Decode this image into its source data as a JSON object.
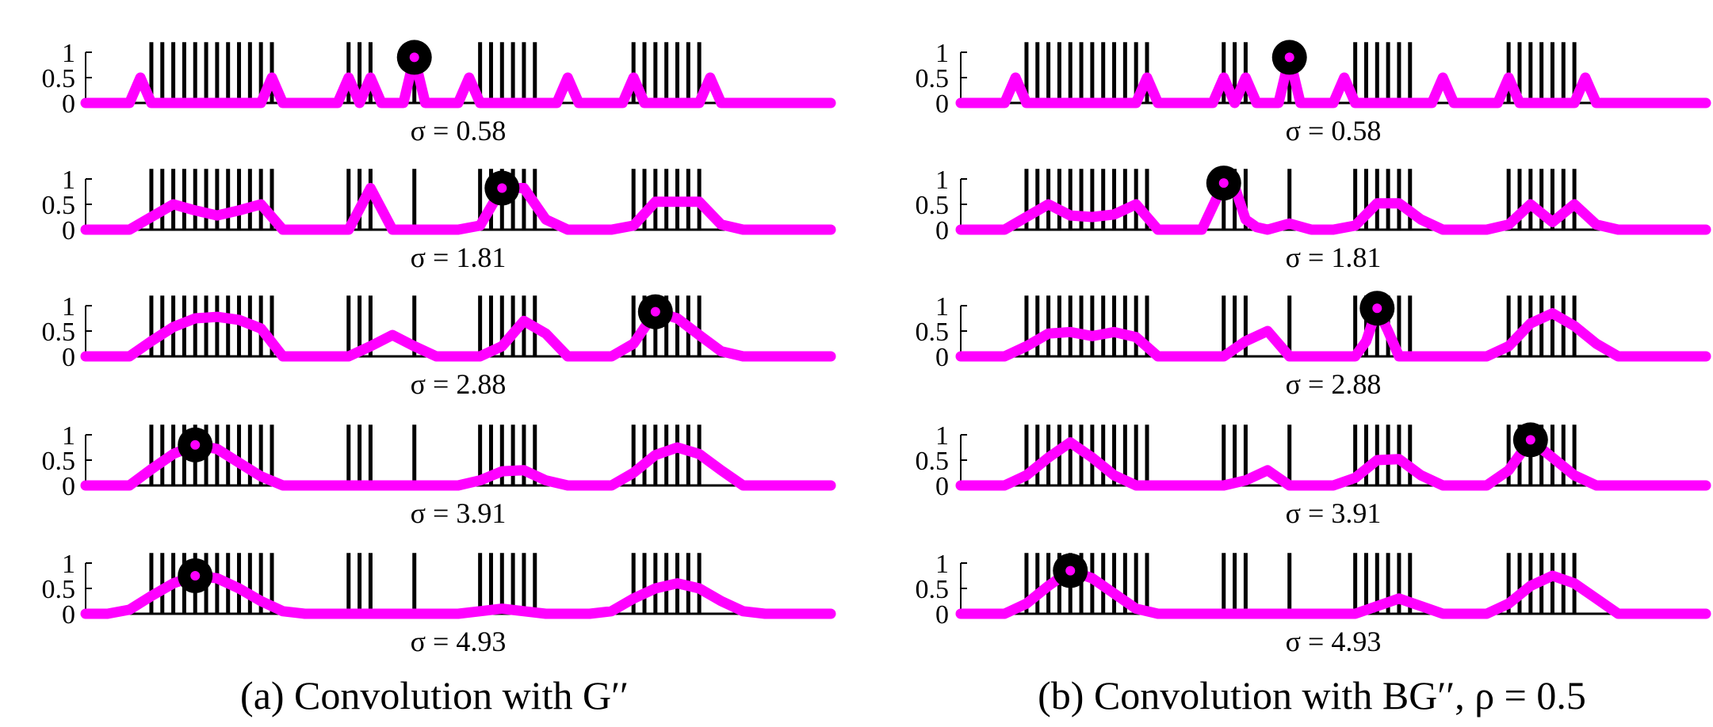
{
  "chart_data": [
    {
      "type": "line",
      "caption": "(a) Convolution with G′′",
      "y_ticks": [
        "0",
        "0.5",
        "1"
      ],
      "ylim": [
        0,
        1
      ],
      "xlim": [
        0,
        68
      ],
      "stem_x": [
        6,
        7,
        8,
        9,
        10,
        11,
        12,
        13,
        14,
        15,
        16,
        17,
        24,
        25,
        26,
        30,
        36,
        37,
        38,
        39,
        40,
        41,
        50,
        51,
        52,
        53,
        54,
        55,
        56
      ],
      "panels": [
        {
          "sigma_label": "σ = 0.58",
          "marker": [
            30,
            0.9
          ],
          "x": [
            0,
            4,
            5,
            6,
            7,
            16,
            17,
            18,
            22,
            23,
            24,
            25,
            26,
            27,
            28,
            29,
            30,
            31,
            32,
            34,
            35,
            36,
            37,
            38,
            42,
            43,
            44,
            45,
            46,
            48,
            49,
            50,
            51,
            52,
            56,
            57,
            58,
            59,
            68
          ],
          "values": [
            0,
            0,
            0.5,
            0,
            0,
            0,
            0.5,
            0,
            0,
            0,
            0.5,
            0,
            0.5,
            0,
            0,
            0,
            0.9,
            0,
            0,
            0,
            0.5,
            0,
            0,
            0,
            0,
            0,
            0.5,
            0,
            0,
            0,
            0,
            0.5,
            0,
            0,
            0,
            0.5,
            0,
            0,
            0
          ]
        },
        {
          "sigma_label": "σ = 1.81",
          "marker": [
            38,
            0.82
          ],
          "x": [
            0,
            4,
            6,
            8,
            10,
            12,
            14,
            16,
            18,
            22,
            24,
            26,
            28,
            32,
            34,
            36,
            38,
            40,
            42,
            44,
            46,
            48,
            50,
            52,
            54,
            55,
            56,
            58,
            60,
            68
          ],
          "values": [
            0,
            0,
            0.25,
            0.5,
            0.38,
            0.28,
            0.38,
            0.5,
            0,
            0,
            0,
            0.82,
            0,
            0,
            0,
            0.08,
            0.82,
            0.82,
            0.2,
            0,
            0,
            0,
            0.08,
            0.55,
            0.55,
            0.55,
            0.55,
            0.1,
            0,
            0
          ]
        },
        {
          "sigma_label": "σ = 2.88",
          "marker": [
            52,
            0.88
          ],
          "x": [
            0,
            4,
            6,
            8,
            10,
            12,
            14,
            16,
            18,
            22,
            24,
            26,
            28,
            30,
            32,
            34,
            36,
            38,
            40,
            42,
            44,
            46,
            48,
            50,
            52,
            54,
            56,
            58,
            60,
            68
          ],
          "values": [
            0,
            0,
            0.3,
            0.58,
            0.75,
            0.78,
            0.72,
            0.55,
            0,
            0,
            0,
            0.2,
            0.42,
            0.2,
            0,
            0,
            0,
            0.2,
            0.7,
            0.45,
            0,
            0,
            0,
            0.25,
            0.88,
            0.75,
            0.42,
            0.1,
            0,
            0
          ]
        },
        {
          "sigma_label": "σ = 3.91",
          "marker": [
            10,
            0.8
          ],
          "x": [
            0,
            4,
            6,
            8,
            10,
            12,
            14,
            16,
            18,
            24,
            28,
            32,
            34,
            36,
            38,
            40,
            42,
            44,
            46,
            48,
            50,
            52,
            54,
            56,
            58,
            60,
            68
          ],
          "values": [
            0,
            0,
            0.32,
            0.62,
            0.8,
            0.72,
            0.45,
            0.18,
            0,
            0,
            0,
            0,
            0,
            0.1,
            0.28,
            0.3,
            0.1,
            0,
            0,
            0,
            0.25,
            0.6,
            0.75,
            0.62,
            0.3,
            0,
            0
          ]
        },
        {
          "sigma_label": "σ = 4.93",
          "marker": [
            10,
            0.75
          ],
          "x": [
            0,
            2,
            4,
            6,
            8,
            10,
            12,
            14,
            16,
            18,
            20,
            24,
            30,
            34,
            36,
            38,
            40,
            42,
            44,
            46,
            48,
            50,
            52,
            54,
            56,
            58,
            60,
            62,
            68
          ],
          "values": [
            0,
            0,
            0.08,
            0.35,
            0.6,
            0.75,
            0.7,
            0.5,
            0.25,
            0.05,
            0,
            0,
            0,
            0,
            0.05,
            0.1,
            0.05,
            0,
            0,
            0,
            0.05,
            0.3,
            0.5,
            0.6,
            0.5,
            0.25,
            0.05,
            0,
            0
          ]
        }
      ]
    },
    {
      "type": "line",
      "caption": "(b) Convolution with BG′′, ρ = 0.5",
      "y_ticks": [
        "0",
        "0.5",
        "1"
      ],
      "ylim": [
        0,
        1
      ],
      "xlim": [
        0,
        68
      ],
      "stem_x": [
        6,
        7,
        8,
        9,
        10,
        11,
        12,
        13,
        14,
        15,
        16,
        17,
        24,
        25,
        26,
        30,
        36,
        37,
        38,
        39,
        40,
        41,
        50,
        51,
        52,
        53,
        54,
        55,
        56
      ],
      "panels": [
        {
          "sigma_label": "σ = 0.58",
          "marker": [
            30,
            0.9
          ],
          "x": [
            0,
            4,
            5,
            6,
            7,
            16,
            17,
            18,
            22,
            23,
            24,
            25,
            26,
            27,
            28,
            29,
            30,
            31,
            32,
            34,
            35,
            36,
            37,
            38,
            42,
            43,
            44,
            45,
            46,
            48,
            49,
            50,
            51,
            52,
            56,
            57,
            58,
            59,
            68
          ],
          "values": [
            0,
            0,
            0.5,
            0,
            0,
            0,
            0.5,
            0,
            0,
            0,
            0.5,
            0,
            0.5,
            0,
            0,
            0,
            0.9,
            0,
            0,
            0,
            0.5,
            0,
            0,
            0,
            0,
            0,
            0.5,
            0,
            0,
            0,
            0,
            0.5,
            0,
            0,
            0,
            0.5,
            0,
            0,
            0
          ]
        },
        {
          "sigma_label": "σ = 1.81",
          "marker": [
            24,
            0.92
          ],
          "x": [
            0,
            4,
            6,
            8,
            10,
            12,
            14,
            16,
            18,
            22,
            24,
            25,
            26,
            27,
            28,
            30,
            32,
            34,
            36,
            38,
            40,
            42,
            44,
            46,
            48,
            50,
            52,
            54,
            56,
            58,
            60,
            68
          ],
          "values": [
            0,
            0,
            0.25,
            0.5,
            0.28,
            0.25,
            0.3,
            0.5,
            0,
            0,
            0.92,
            0.85,
            0.2,
            0.05,
            0,
            0.12,
            0,
            0,
            0.08,
            0.52,
            0.52,
            0.2,
            0,
            0,
            0,
            0.1,
            0.5,
            0.15,
            0.5,
            0.1,
            0,
            0
          ]
        },
        {
          "sigma_label": "σ = 2.88",
          "marker": [
            38,
            0.95
          ],
          "x": [
            0,
            4,
            6,
            8,
            10,
            12,
            14,
            16,
            18,
            22,
            24,
            26,
            28,
            30,
            32,
            34,
            36,
            37,
            38,
            39,
            40,
            42,
            44,
            46,
            48,
            50,
            52,
            54,
            56,
            58,
            60,
            68
          ],
          "values": [
            0,
            0,
            0.2,
            0.45,
            0.48,
            0.4,
            0.48,
            0.38,
            0,
            0,
            0,
            0.3,
            0.5,
            0,
            0,
            0,
            0,
            0.3,
            0.95,
            0.5,
            0,
            0,
            0,
            0,
            0,
            0.2,
            0.65,
            0.85,
            0.6,
            0.25,
            0,
            0
          ]
        },
        {
          "sigma_label": "σ = 3.91",
          "marker": [
            52,
            0.9
          ],
          "x": [
            0,
            4,
            6,
            8,
            10,
            12,
            14,
            16,
            18,
            22,
            24,
            26,
            28,
            30,
            34,
            36,
            38,
            40,
            42,
            44,
            46,
            48,
            50,
            52,
            54,
            56,
            58,
            60,
            68
          ],
          "values": [
            0,
            0,
            0.2,
            0.55,
            0.85,
            0.55,
            0.2,
            0,
            0,
            0,
            0,
            0.1,
            0.3,
            0,
            0,
            0.15,
            0.5,
            0.52,
            0.2,
            0,
            0,
            0,
            0.3,
            0.9,
            0.55,
            0.2,
            0,
            0,
            0
          ]
        },
        {
          "sigma_label": "σ = 4.93",
          "marker": [
            10,
            0.85
          ],
          "x": [
            0,
            4,
            6,
            8,
            10,
            12,
            14,
            16,
            18,
            20,
            24,
            30,
            34,
            36,
            38,
            40,
            42,
            44,
            46,
            48,
            50,
            52,
            54,
            56,
            58,
            60,
            68
          ],
          "values": [
            0,
            0,
            0.2,
            0.55,
            0.85,
            0.7,
            0.4,
            0.1,
            0,
            0,
            0,
            0,
            0,
            0,
            0.15,
            0.3,
            0.15,
            0,
            0,
            0,
            0.2,
            0.55,
            0.75,
            0.6,
            0.3,
            0,
            0
          ]
        }
      ]
    }
  ]
}
